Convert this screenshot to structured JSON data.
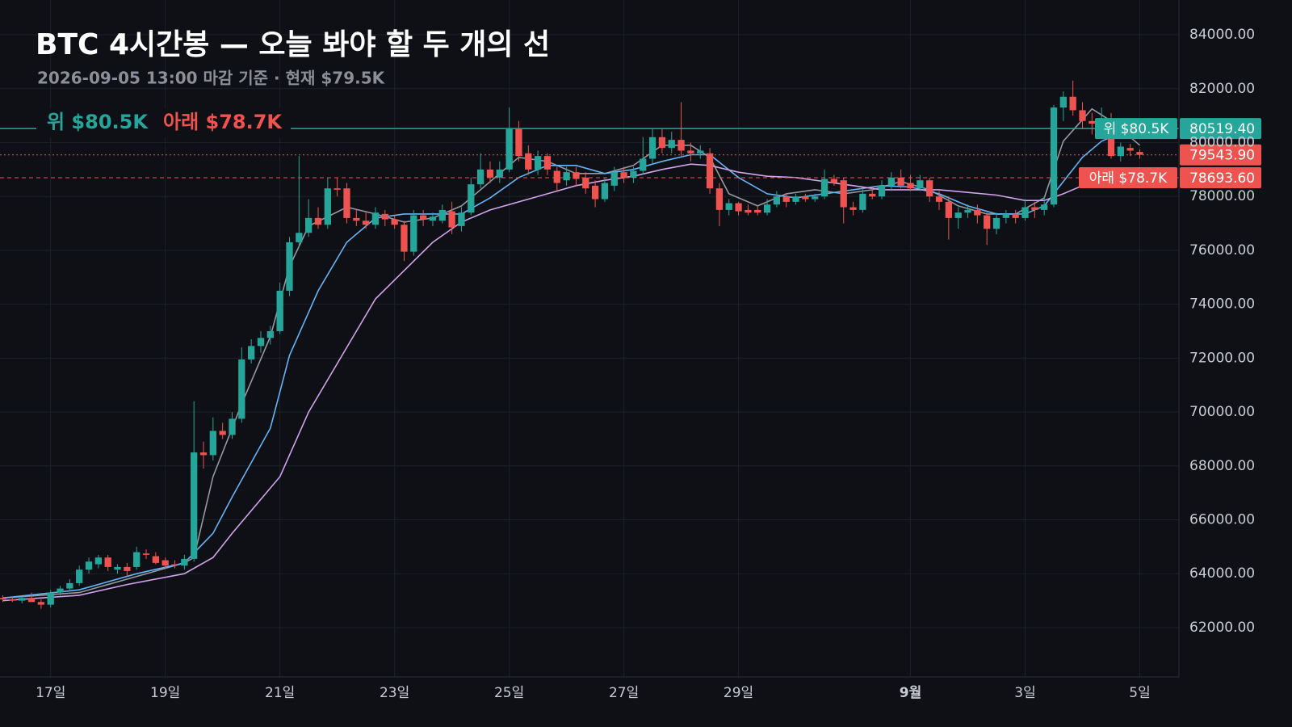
{
  "chart_data": {
    "type": "candlestick",
    "title": "BTC 4시간봉 — 오늘 봐야 할 두 개의 선",
    "subtitle": "2026-09-05 13:00 마감 기준 · 현재 $79.5K",
    "up_color": "#26a69a",
    "down_color": "#ef5350",
    "grid": true,
    "xlim": [
      -0.3,
      123.1
    ],
    "xticks": [
      {
        "value": 5,
        "label": "17일"
      },
      {
        "value": 17,
        "label": "19일"
      },
      {
        "value": 29,
        "label": "21일"
      },
      {
        "value": 41,
        "label": "23일"
      },
      {
        "value": 53,
        "label": "25일"
      },
      {
        "value": 65,
        "label": "27일"
      },
      {
        "value": 77,
        "label": "29일"
      },
      {
        "value": 95,
        "label": "9월",
        "bold": true
      },
      {
        "value": 107,
        "label": "3일"
      },
      {
        "value": 119,
        "label": "5일"
      }
    ],
    "ylim": [
      60170,
      85290
    ],
    "yticks": [
      {
        "value": 62000,
        "label": "62000.00"
      },
      {
        "value": 64000,
        "label": "64000.00"
      },
      {
        "value": 66000,
        "label": "66000.00"
      },
      {
        "value": 68000,
        "label": "68000.00"
      },
      {
        "value": 70000,
        "label": "70000.00"
      },
      {
        "value": 72000,
        "label": "72000.00"
      },
      {
        "value": 74000,
        "label": "74000.00"
      },
      {
        "value": 76000,
        "label": "76000.00"
      },
      {
        "value": 78000,
        "label": "78000.00"
      },
      {
        "value": 80000,
        "label": "80000.00"
      },
      {
        "value": 82000,
        "label": "82000.00"
      },
      {
        "value": 84000,
        "label": "84000.00"
      }
    ],
    "open": [
      63100,
      63050,
      63000,
      63100,
      62950,
      62850,
      63300,
      63450,
      63650,
      64150,
      64350,
      64600,
      64150,
      64250,
      64250,
      64750,
      64650,
      64500,
      64350,
      64300,
      64550,
      68500,
      68400,
      69300,
      69150,
      69750,
      71950,
      72450,
      72750,
      73000,
      74500,
      76300,
      76650,
      77200,
      76950,
      78300,
      78300,
      77200,
      77100,
      76950,
      77350,
      77150,
      76950,
      75950,
      77300,
      77100,
      77100,
      77450,
      76900,
      77400,
      78450,
      79000,
      78700,
      79000,
      80500,
      79600,
      79000,
      79500,
      78950,
      78600,
      78900,
      78700,
      78400,
      77900,
      78400,
      78900,
      78700,
      78950,
      79400,
      80200,
      79800,
      80100,
      79700,
      79600,
      79600,
      78300,
      77500,
      77750,
      77500,
      77500,
      77400,
      77700,
      78000,
      77800,
      78000,
      77900,
      78000,
      78650,
      78600,
      77600,
      77500,
      78100,
      78000,
      78400,
      78700,
      78500,
      78300,
      78600,
      78000,
      77800,
      77200,
      77400,
      77500,
      77300,
      76800,
      77200,
      77350,
      77200,
      77600,
      77500,
      77700,
      81300,
      81700,
      81200,
      80800,
      80700,
      80900,
      79500,
      79800,
      79650
    ],
    "high": [
      63200,
      63150,
      63150,
      63300,
      63050,
      63400,
      63550,
      63800,
      64300,
      64600,
      64700,
      64700,
      64350,
      64400,
      65000,
      64900,
      64800,
      64600,
      64500,
      64700,
      70400,
      68900,
      69800,
      69600,
      70000,
      72400,
      72700,
      73000,
      73200,
      74800,
      76500,
      79500,
      77900,
      77600,
      78700,
      78700,
      78500,
      77500,
      77400,
      77600,
      77500,
      77300,
      77100,
      77500,
      77500,
      77400,
      77700,
      77800,
      77600,
      78700,
      79600,
      79300,
      79300,
      81300,
      80800,
      79900,
      79700,
      79600,
      79100,
      79100,
      79100,
      78900,
      78600,
      78700,
      79100,
      79100,
      79100,
      80200,
      80500,
      80500,
      80400,
      81500,
      80000,
      79900,
      79800,
      78500,
      77900,
      77800,
      77700,
      77650,
      77900,
      78200,
      78100,
      78100,
      78100,
      78100,
      79000,
      78800,
      78700,
      77800,
      78300,
      78300,
      78600,
      78900,
      79000,
      78800,
      78800,
      78700,
      78200,
      78000,
      77600,
      77700,
      77700,
      77400,
      77400,
      77500,
      77500,
      77900,
      77800,
      78000,
      81400,
      81900,
      82300,
      81500,
      81100,
      81300,
      81100,
      80000,
      79950,
      79750
    ],
    "low": [
      62950,
      62950,
      62900,
      62950,
      62700,
      62750,
      63200,
      63350,
      63550,
      64000,
      64200,
      64100,
      64000,
      63900,
      64150,
      64550,
      64350,
      64200,
      64200,
      64150,
      64450,
      67900,
      68200,
      69000,
      69000,
      69600,
      71800,
      72200,
      72500,
      72900,
      74300,
      76100,
      76500,
      76800,
      76800,
      78000,
      77000,
      76900,
      76800,
      76800,
      76900,
      76800,
      75600,
      75800,
      76900,
      76900,
      77000,
      76600,
      76700,
      77300,
      78300,
      78500,
      78500,
      78900,
      79300,
      78800,
      78800,
      78800,
      78200,
      78400,
      78400,
      78100,
      77600,
      77800,
      78200,
      78500,
      78500,
      78800,
      79200,
      79600,
      79600,
      79500,
      79300,
      79400,
      78100,
      76900,
      77300,
      77300,
      77300,
      77300,
      77300,
      77600,
      77600,
      77700,
      77800,
      77800,
      77900,
      78400,
      77000,
      77300,
      77400,
      77900,
      77900,
      78200,
      78300,
      78200,
      78200,
      77800,
      77500,
      76400,
      76800,
      77200,
      77000,
      76200,
      76600,
      77000,
      77000,
      77100,
      77200,
      77300,
      77600,
      80800,
      81000,
      80500,
      80300,
      80400,
      79400,
      79300,
      79500,
      79400
    ],
    "close": [
      63050,
      63000,
      63100,
      62950,
      62850,
      63300,
      63450,
      63650,
      64150,
      64450,
      64600,
      64250,
      64250,
      64100,
      64800,
      64700,
      64400,
      64300,
      64300,
      64550,
      68500,
      68400,
      69300,
      69150,
      69750,
      71950,
      72450,
      72750,
      73000,
      74500,
      76300,
      76650,
      77200,
      76950,
      78300,
      78250,
      77200,
      77100,
      76950,
      77400,
      77150,
      76950,
      75950,
      77300,
      77150,
      77250,
      77500,
      76850,
      77400,
      78450,
      79000,
      78700,
      79000,
      80500,
      79500,
      79000,
      79500,
      79000,
      78500,
      78900,
      78650,
      78300,
      77900,
      78500,
      78900,
      78700,
      78950,
      79400,
      80200,
      79800,
      80100,
      79700,
      79600,
      79700,
      78300,
      77500,
      77750,
      77450,
      77400,
      77400,
      77700,
      78000,
      77800,
      78000,
      77900,
      78000,
      78650,
      78500,
      77600,
      77500,
      78100,
      78000,
      78400,
      78700,
      78400,
      78300,
      78600,
      78000,
      77800,
      77200,
      77400,
      77500,
      77300,
      76800,
      77200,
      77350,
      77200,
      77600,
      77500,
      77700,
      81300,
      81700,
      81200,
      80800,
      80700,
      80900,
      79500,
      79850,
      79700,
      79543.9
    ],
    "lines": [
      {
        "color": "#9598a1",
        "x": [
          0,
          8,
          14,
          19,
          20,
          22,
          25,
          28,
          30,
          32,
          36,
          39,
          42,
          45,
          48,
          51,
          54,
          57,
          60,
          63,
          66,
          69,
          72,
          74,
          76,
          79,
          82,
          85,
          88,
          91,
          94,
          97,
          100,
          103,
          106,
          109,
          111,
          114,
          116,
          118,
          119
        ],
        "values": [
          63100,
          63300,
          63900,
          64400,
          64600,
          67600,
          70300,
          72800,
          75400,
          76900,
          77600,
          77350,
          77050,
          77200,
          77650,
          78550,
          79450,
          79300,
          78850,
          78850,
          79150,
          79900,
          79900,
          79450,
          78100,
          77650,
          78100,
          78250,
          78100,
          78250,
          78550,
          78250,
          77650,
          77350,
          77350,
          77950,
          80050,
          81250,
          80800,
          80200,
          79900
        ]
      },
      {
        "color": "#64b5f6",
        "x": [
          0,
          8,
          14,
          19,
          22,
          24,
          28,
          30,
          33,
          36,
          39,
          42,
          45,
          48,
          51,
          54,
          57,
          60,
          63,
          66,
          69,
          72,
          74,
          77,
          80,
          83,
          86,
          89,
          92,
          95,
          98,
          101,
          104,
          107,
          109,
          111,
          113,
          115,
          117
        ],
        "values": [
          63100,
          63400,
          64000,
          64400,
          65500,
          66850,
          69400,
          72100,
          74500,
          76300,
          77200,
          77350,
          77350,
          77350,
          77950,
          78700,
          79150,
          79150,
          78850,
          79000,
          79300,
          79550,
          79550,
          78700,
          78100,
          77950,
          78100,
          78250,
          78400,
          78350,
          78100,
          77650,
          77350,
          77350,
          77650,
          78550,
          79450,
          80050,
          80350
        ]
      },
      {
        "color": "#d1a3ec",
        "x": [
          0,
          8,
          13,
          19,
          22,
          24,
          29,
          32,
          36,
          39,
          42,
          45,
          48,
          51,
          54,
          57,
          60,
          63,
          66,
          69,
          72,
          74,
          77,
          80,
          83,
          86,
          89,
          92,
          95,
          98,
          101,
          104,
          107,
          109,
          111,
          113,
          115
        ],
        "values": [
          63000,
          63200,
          63600,
          64000,
          64600,
          65500,
          67600,
          70000,
          72400,
          74200,
          75250,
          76300,
          77050,
          77500,
          77800,
          78100,
          78400,
          78600,
          78750,
          79000,
          79200,
          79150,
          78900,
          78750,
          78700,
          78550,
          78400,
          78250,
          78250,
          78250,
          78150,
          78050,
          77850,
          77850,
          78100,
          78400,
          78700
        ]
      }
    ],
    "levels": [
      {
        "name": "위 $80.5K",
        "value": 80519.4,
        "label": "80519.40",
        "color": "#26a69a",
        "style": "solid"
      },
      {
        "name": "아래 $78.7K",
        "value": 78693.6,
        "label": "78693.60",
        "color": "#ef5350",
        "style": "dashed"
      }
    ],
    "current": {
      "value": 79543.9,
      "label": "79543.90",
      "color": "#ef5350",
      "style": "dotted"
    }
  }
}
